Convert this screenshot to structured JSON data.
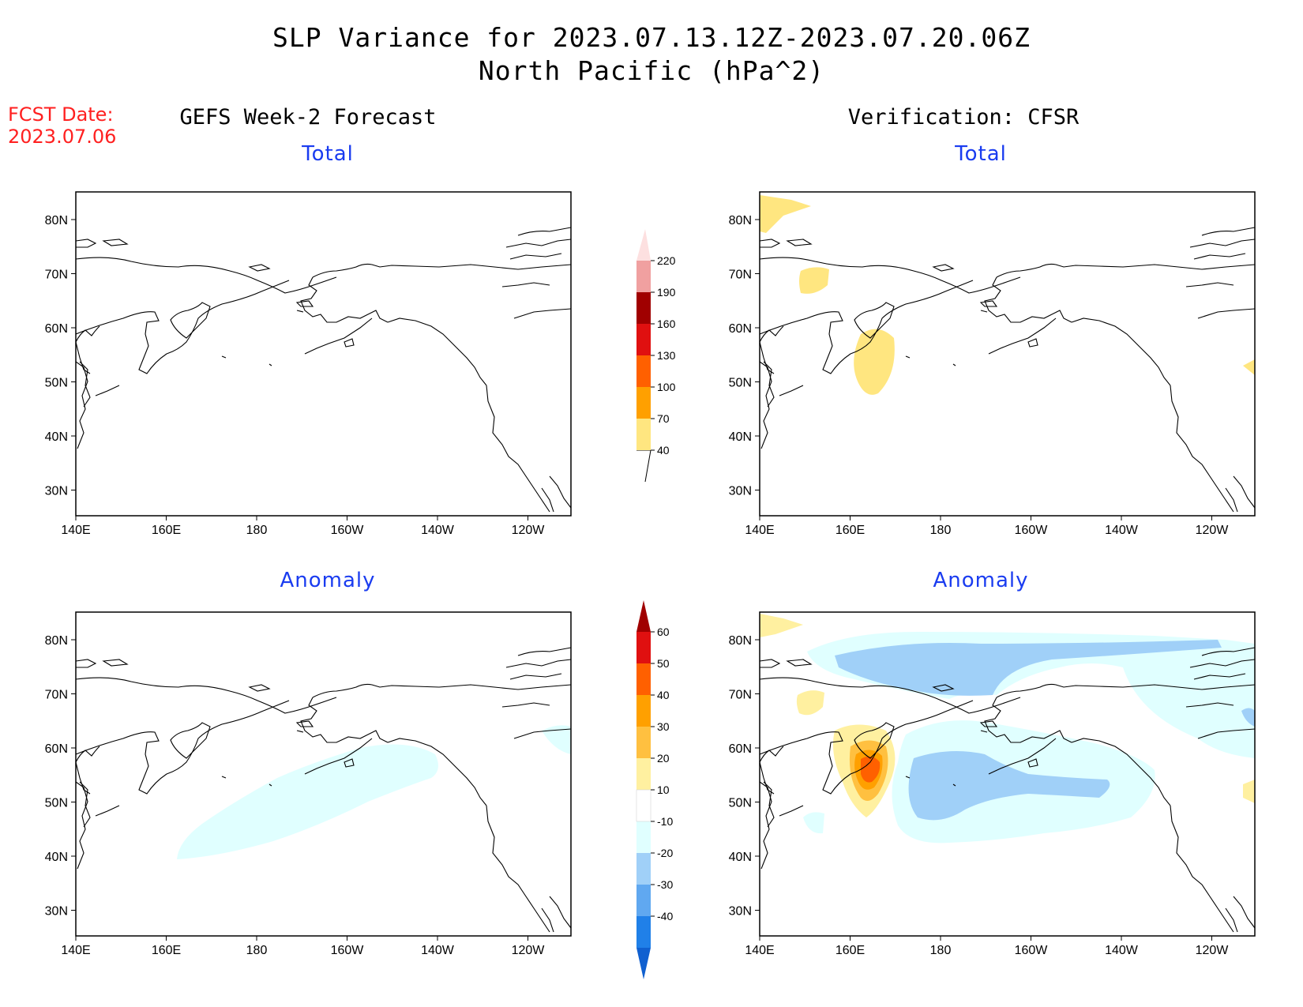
{
  "title": {
    "line1": "SLP Variance for 2023.07.13.12Z-2023.07.20.06Z",
    "line2": "North Pacific (hPa^2)"
  },
  "forecast_date": {
    "label": "FCST Date:",
    "value": "2023.07.06"
  },
  "columns": {
    "left": "GEFS Week-2 Forecast",
    "right": "Verification: CFSR"
  },
  "panels": [
    {
      "id": "gefs-total",
      "subtitle": "Total"
    },
    {
      "id": "cfsr-total",
      "subtitle": "Total"
    },
    {
      "id": "gefs-anomaly",
      "subtitle": "Anomaly"
    },
    {
      "id": "cfsr-anomaly",
      "subtitle": "Anomaly"
    }
  ],
  "axes": {
    "lon_ticks": [
      "140E",
      "160E",
      "180",
      "160W",
      "140W",
      "120W"
    ],
    "lat_ticks": [
      "80N",
      "70N",
      "60N",
      "50N",
      "40N",
      "30N"
    ]
  },
  "colorbars": {
    "total": {
      "levels": [
        "40",
        "70",
        "100",
        "130",
        "160",
        "190",
        "220"
      ],
      "colors": [
        "#ffe680",
        "#ffa000",
        "#ff6000",
        "#e01010",
        "#a00000",
        "#f0a0a0",
        "#fde0e0"
      ]
    },
    "anomaly": {
      "levels": [
        "60",
        "50",
        "40",
        "30",
        "20",
        "10",
        "-10",
        "-20",
        "-30",
        "-40"
      ],
      "colors_top_to_bottom": [
        "#a00000",
        "#e01010",
        "#ff6000",
        "#ffa000",
        "#ffc040",
        "#fff0a0",
        "#ffffff",
        "#e0ffff",
        "#a0d0f8",
        "#60a8f0",
        "#2080e8",
        "#1060d0"
      ]
    }
  }
}
